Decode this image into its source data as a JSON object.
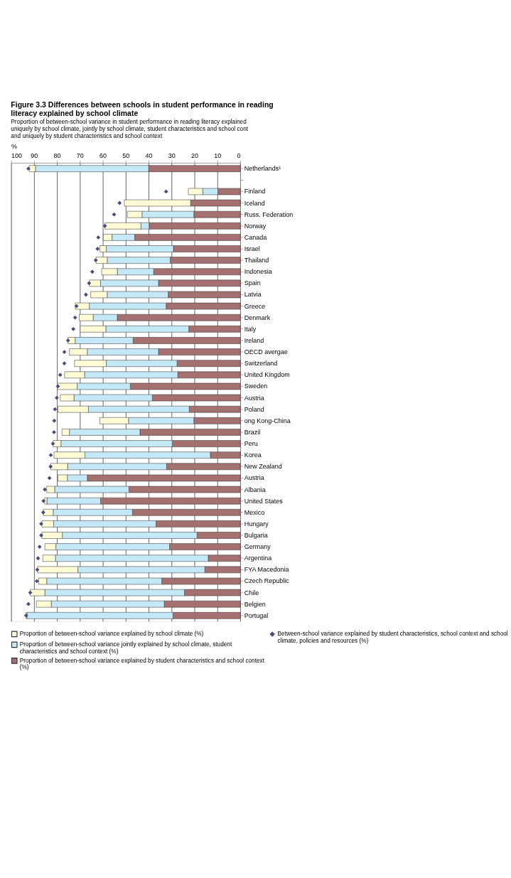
{
  "chart_data": {
    "type": "bar",
    "orientation": "horizontal",
    "stacked": true,
    "title": "Figure 3.3 Differences between schools in student performance in reading literacy explained by school climate",
    "subtitle": [
      "Proportion of between-school variance in student performance in reading literacy explained uniquely by school climate, jointly by school climate, student characteristics and school cont",
      "and uniquely by student characteristics and school context"
    ],
    "xlabel": "%",
    "categories": [
      "Netherlands¹",
      null,
      "Finland",
      "Iceland",
      "Russ. Federation",
      "Norway",
      "Canada",
      "Israel",
      "Thailand",
      "Indonesia",
      "Spain",
      "Latvia",
      "Greece",
      "Denmark",
      "Italy",
      "Ireland",
      "OECD avergae",
      "Switzerland",
      "United Kingdom",
      "Sweden",
      "Austria",
      "Poland",
      "ong Kong-China",
      "Brazil",
      "Peru",
      "Korea",
      "New Zealand",
      "Austria",
      "Albania",
      "United States",
      "Mexico",
      "Hungary",
      "Bulgaria",
      "Germany",
      "Argentina",
      "FYA Macedonia",
      "Czech Republic",
      "Chile",
      "Belgien",
      "Portugal"
    ],
    "series": [
      {
        "name": "Proportion of between-school variance explained by student characteristics and school context  (%)",
        "color": "#a57070",
        "values": [
          40,
          null,
          9.8,
          21.7,
          20.3,
          39.8,
          46.1,
          29.2,
          30.6,
          37.8,
          35.7,
          31.5,
          32.4,
          53.7,
          22.5,
          46.8,
          35.7,
          27.6,
          27.3,
          48,
          38.4,
          22.3,
          20.3,
          43.8,
          29.7,
          13.1,
          32.2,
          66.8,
          48.6,
          61,
          47.1,
          36.8,
          18.9,
          30.9,
          14,
          15.5,
          34.3,
          24.4,
          33.2,
          29.4
        ]
      },
      {
        "name": "Proportion of between-school variance jointly explained by school climate, student characteristics and school context (%)",
        "color": "#c5e8f7",
        "values": [
          49.4,
          null,
          6.6,
          null,
          22.6,
          3.6,
          9.9,
          29.3,
          27.5,
          15.9,
          25.3,
          26.6,
          33.5,
          10.5,
          36.2,
          25.3,
          31.1,
          30.9,
          40.7,
          23.2,
          34.2,
          44,
          28.5,
          30.8,
          48.6,
          54.7,
          43.2,
          8.7,
          32.4,
          23.4,
          34.6,
          44.7,
          58.8,
          49.6,
          66.7,
          55.4,
          50.2,
          60.9,
          49.3,
          63.7
        ]
      },
      {
        "name": "Proportion of between-school variance explained by school climate (%)",
        "color": "#fffbd6",
        "values": [
          2.7,
          null,
          6.3,
          28.9,
          6.4,
          15.7,
          3.8,
          2.8,
          4.9,
          6.8,
          4.9,
          7.2,
          6.1,
          6.1,
          11.2,
          3.1,
          7.8,
          13.9,
          8.7,
          8.7,
          6,
          13.3,
          12.5,
          3.2,
          3.4,
          13.5,
          7.4,
          4.1,
          3.5,
          1,
          4.3,
          5.1,
          8.9,
          4.8,
          5.5,
          17.6,
          3.5,
          6.4,
          6.5,
          0.4
        ]
      },
      {
        "name": "Between-school variance explained by student characteristics, school context and school climate, policies and resources (%)",
        "type": "scatter",
        "marker": "diamond",
        "color": "#4b4b7b",
        "values": [
          92.5,
          null,
          32.4,
          52.7,
          55.1,
          59.1,
          62,
          62.3,
          63.1,
          64.6,
          66,
          67.4,
          71.5,
          72.1,
          72.9,
          75.2,
          76.8,
          76.8,
          78.6,
          79.6,
          80.1,
          80.9,
          81.2,
          81.3,
          81.8,
          82.7,
          82.8,
          83.3,
          85.3,
          85.9,
          86,
          86.9,
          86.9,
          87.6,
          88.3,
          88.6,
          88.8,
          91.7,
          92.5,
          93.5
        ]
      }
    ],
    "xlim": [
      100,
      0
    ],
    "xticks": [
      100,
      90,
      80,
      70,
      60,
      50,
      40,
      30,
      20,
      10,
      0
    ],
    "grid": "x",
    "legend": "bottom"
  }
}
